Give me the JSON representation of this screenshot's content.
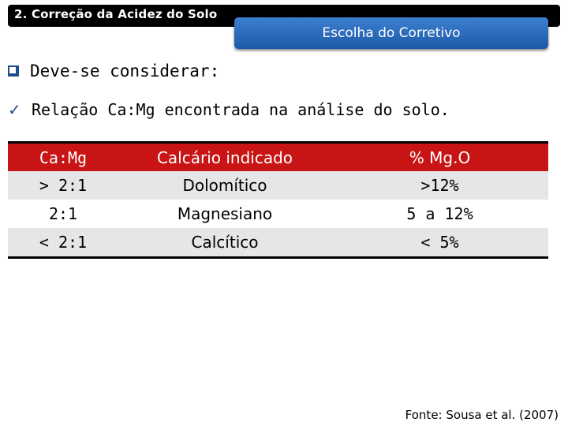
{
  "header": {
    "section_label": "2. Correção da Acidez do Solo",
    "subtitle": "Escolha do Corretivo"
  },
  "bullets": {
    "main": "Deve-se considerar:",
    "sub": "Relação Ca:Mg encontrada na análise do solo."
  },
  "icons": {
    "main_bullet": "square-bullet-icon",
    "sub_bullet": "checkmark-icon"
  },
  "table": {
    "headers": [
      "Ca:Mg",
      "Calcário indicado",
      "% Mg.O"
    ],
    "rows": [
      [
        "> 2:1",
        "Dolomítico",
        ">12%"
      ],
      [
        "2:1",
        "Magnesiano",
        "5 a 12%"
      ],
      [
        "< 2:1",
        "Calcítico",
        "< 5%"
      ]
    ]
  },
  "source": "Fonte: Sousa et al. (2007)",
  "colors": {
    "header_row": "#c81414",
    "subtitle_box": "#2a6bbd",
    "shaded_row": "#e6e6e6",
    "bullet": "#1f4e8c"
  }
}
